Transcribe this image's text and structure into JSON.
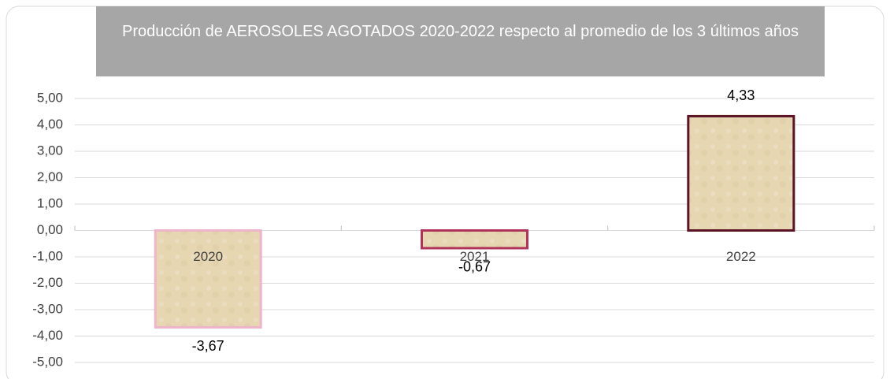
{
  "chart_data": {
    "type": "bar",
    "title": "Producción de AEROSOLES AGOTADOS 2020-2022 respecto al promedio de los 3 últimos años",
    "categories": [
      "2020",
      "2021",
      "2022"
    ],
    "values": [
      -3.67,
      -0.67,
      4.33
    ],
    "value_labels": [
      "-3,67",
      "-0,67",
      "4,33"
    ],
    "color": "#e6d6b2",
    "edge_colors": [
      "#eeb4cc",
      "#b0335a",
      "#5a1426"
    ],
    "ylim": [
      -5,
      5
    ],
    "yticks": [
      {
        "value": -5,
        "label": "-5,00"
      },
      {
        "value": -4,
        "label": "-4,00"
      },
      {
        "value": -3,
        "label": "-3,00"
      },
      {
        "value": -2,
        "label": "-2,00"
      },
      {
        "value": -1,
        "label": "-1,00"
      },
      {
        "value": 0,
        "label": "0,00"
      },
      {
        "value": 1,
        "label": "1,00"
      },
      {
        "value": 2,
        "label": "2,00"
      },
      {
        "value": 3,
        "label": "3,00"
      },
      {
        "value": 4,
        "label": "4,00"
      },
      {
        "value": 5,
        "label": "5,00"
      }
    ],
    "grid": true
  }
}
